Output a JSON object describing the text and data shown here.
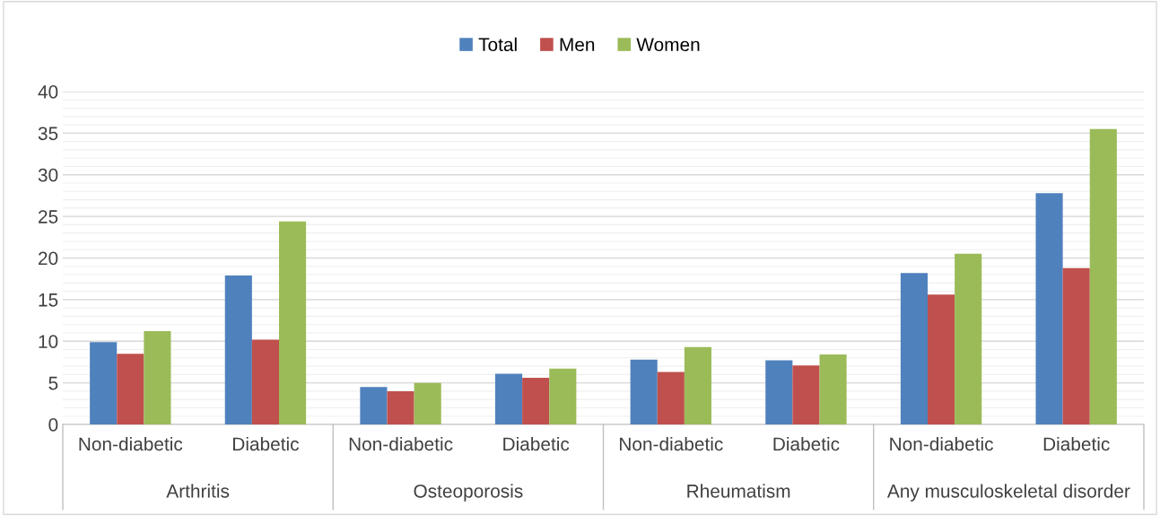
{
  "chart_data": {
    "type": "bar",
    "categories": [
      "Non-diabetic",
      "Diabetic",
      "Non-diabetic",
      "Diabetic",
      "Non-diabetic",
      "Diabetic",
      "Non-diabetic",
      "Diabetic"
    ],
    "series": [
      {
        "name": "Total",
        "color": "#4f81bd",
        "values": [
          9.9,
          17.9,
          4.5,
          6.1,
          7.8,
          7.7,
          18.2,
          27.8
        ]
      },
      {
        "name": "Men",
        "color": "#c0504d",
        "values": [
          8.5,
          10.2,
          4.0,
          5.6,
          6.3,
          7.1,
          15.6,
          18.8
        ]
      },
      {
        "name": "Women",
        "color": "#9bbb59",
        "values": [
          11.2,
          24.4,
          5.0,
          6.7,
          9.3,
          8.4,
          20.5,
          35.5
        ]
      }
    ],
    "annotations": [
      "Arthritis",
      "Osteoporosis",
      "Rheumatism",
      "Any musculoskeletal disorder"
    ],
    "ylim": [
      0,
      40
    ],
    "yticks": [
      0,
      5,
      10,
      15,
      20,
      25,
      30,
      35,
      40
    ],
    "grid": "y",
    "legend": "top"
  }
}
